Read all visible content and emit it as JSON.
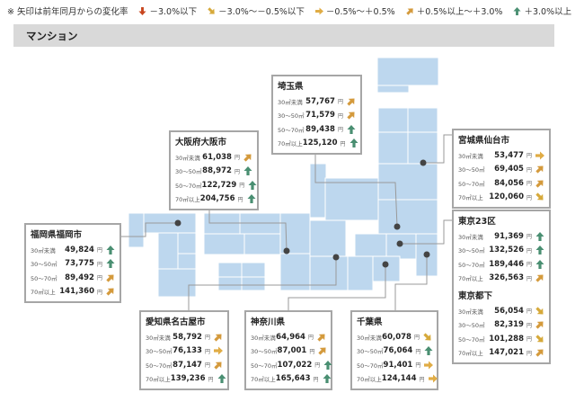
{
  "legend": {
    "note": "※ 矢印は前年同月からの変化率",
    "items": [
      {
        "trend": "down",
        "icon": "arrow-down-icon",
        "label": "－3.0%以下"
      },
      {
        "trend": "down-right",
        "icon": "arrow-down-right-icon",
        "label": "－3.0%～－0.5%以下"
      },
      {
        "trend": "flat",
        "icon": "arrow-right-icon",
        "label": "－0.5%～＋0.5%"
      },
      {
        "trend": "up-right",
        "icon": "arrow-up-right-icon",
        "label": "＋0.5%以上～＋3.0%"
      },
      {
        "trend": "up",
        "icon": "arrow-up-icon",
        "label": "＋3.0%以上"
      }
    ]
  },
  "colors": {
    "down": "#c8451e",
    "down-right": "#d6a93a",
    "flat": "#e0ac45",
    "up-right": "#d49a3c",
    "up": "#4a8f72",
    "map": "#bdd7ee"
  },
  "section_title": "マンション",
  "unit": "円",
  "regions": [
    {
      "id": "saitama",
      "sections": [
        {
          "title": "埼玉県",
          "rows": [
            {
              "label": "30㎡未満",
              "value": "57,767",
              "trend": "up-right"
            },
            {
              "label": "30～50㎡",
              "value": "71,579",
              "trend": "up-right"
            },
            {
              "label": "50～70㎡",
              "value": "89,438",
              "trend": "up"
            },
            {
              "label": "70㎡以上",
              "value": "125,120",
              "trend": "up"
            }
          ]
        }
      ]
    },
    {
      "id": "osaka",
      "sections": [
        {
          "title": "大阪府大阪市",
          "rows": [
            {
              "label": "30㎡未満",
              "value": "61,038",
              "trend": "up-right"
            },
            {
              "label": "30～50㎡",
              "value": "88,972",
              "trend": "up"
            },
            {
              "label": "50～70㎡",
              "value": "122,729",
              "trend": "up"
            },
            {
              "label": "70㎡以上",
              "value": "204,756",
              "trend": "up"
            }
          ]
        }
      ]
    },
    {
      "id": "sendai",
      "sections": [
        {
          "title": "宮城県仙台市",
          "rows": [
            {
              "label": "30㎡未満",
              "value": "53,477",
              "trend": "flat"
            },
            {
              "label": "30～50㎡",
              "value": "69,405",
              "trend": "up-right"
            },
            {
              "label": "50～70㎡",
              "value": "84,056",
              "trend": "up-right"
            },
            {
              "label": "70㎡以上",
              "value": "120,060",
              "trend": "down-right"
            }
          ]
        }
      ]
    },
    {
      "id": "fukuoka",
      "sections": [
        {
          "title": "福岡県福岡市",
          "rows": [
            {
              "label": "30㎡未満",
              "value": "49,824",
              "trend": "up"
            },
            {
              "label": "30～50㎡",
              "value": "73,775",
              "trend": "up"
            },
            {
              "label": "50～70㎡",
              "value": "89,492",
              "trend": "up-right"
            },
            {
              "label": "70㎡以上",
              "value": "141,360",
              "trend": "up-right"
            }
          ]
        }
      ]
    },
    {
      "id": "tokyo",
      "sections": [
        {
          "title": "東京23区",
          "rows": [
            {
              "label": "30㎡未満",
              "value": "91,369",
              "trend": "up"
            },
            {
              "label": "30～50㎡",
              "value": "132,526",
              "trend": "up"
            },
            {
              "label": "50～70㎡",
              "value": "189,446",
              "trend": "up"
            },
            {
              "label": "70㎡以上",
              "value": "326,563",
              "trend": "up-right"
            }
          ]
        },
        {
          "title": "東京都下",
          "rows": [
            {
              "label": "30㎡未満",
              "value": "56,054",
              "trend": "down-right"
            },
            {
              "label": "30～50㎡",
              "value": "82,319",
              "trend": "up-right"
            },
            {
              "label": "50～70㎡",
              "value": "101,288",
              "trend": "down-right"
            },
            {
              "label": "70㎡以上",
              "value": "147,021",
              "trend": "up-right"
            }
          ]
        }
      ]
    },
    {
      "id": "nagoya",
      "sections": [
        {
          "title": "愛知県名古屋市",
          "rows": [
            {
              "label": "30㎡未満",
              "value": "58,792",
              "trend": "up-right"
            },
            {
              "label": "30～50㎡",
              "value": "76,133",
              "trend": "flat"
            },
            {
              "label": "50～70㎡",
              "value": "87,147",
              "trend": "up-right"
            },
            {
              "label": "70㎡以上",
              "value": "139,236",
              "trend": "up"
            }
          ]
        }
      ]
    },
    {
      "id": "kanagawa",
      "sections": [
        {
          "title": "神奈川県",
          "rows": [
            {
              "label": "30㎡未満",
              "value": "64,964",
              "trend": "up-right"
            },
            {
              "label": "30～50㎡",
              "value": "87,001",
              "trend": "up-right"
            },
            {
              "label": "50～70㎡",
              "value": "107,022",
              "trend": "up"
            },
            {
              "label": "70㎡以上",
              "value": "165,643",
              "trend": "up"
            }
          ]
        }
      ]
    },
    {
      "id": "chiba",
      "sections": [
        {
          "title": "千葉県",
          "rows": [
            {
              "label": "30㎡未満",
              "value": "60,078",
              "trend": "down-right"
            },
            {
              "label": "30～50㎡",
              "value": "76,064",
              "trend": "up"
            },
            {
              "label": "50～70㎡",
              "value": "91,401",
              "trend": "flat"
            },
            {
              "label": "70㎡以上",
              "value": "124,144",
              "trend": "flat"
            }
          ]
        }
      ]
    }
  ]
}
